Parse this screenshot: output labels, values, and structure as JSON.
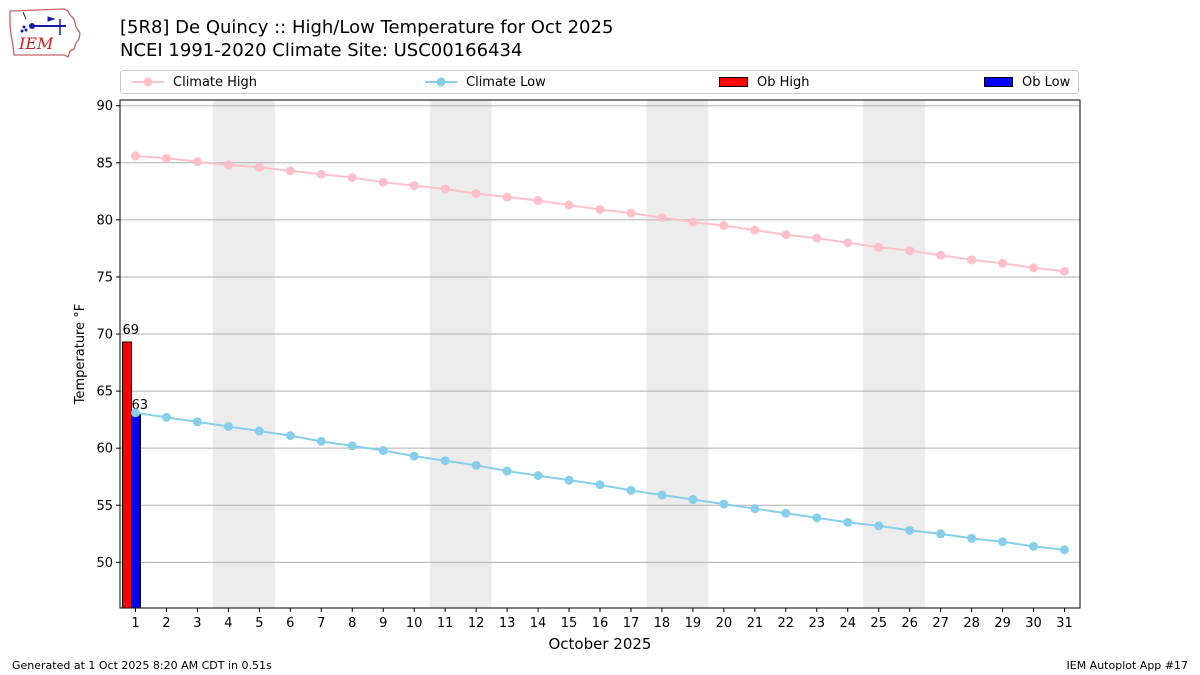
{
  "title_line1": "[5R8] De Quincy :: High/Low Temperature for Oct 2025",
  "title_line2": "NCEI 1991-2020 Climate Site: USC00166434",
  "logo_text": "IEM",
  "footer_left": "Generated at 1 Oct 2025 8:20 AM CDT in 0.51s",
  "footer_right": "IEM Autoplot App #17",
  "colors": {
    "climate_high": "#ffc0cb",
    "climate_low": "#87ceeb",
    "ob_high": "#ff0000",
    "ob_low": "#0000ff",
    "weekend_shade": "#ececec",
    "grid": "#b0b0b0"
  },
  "legend": [
    {
      "label": "Climate High",
      "kind": "line",
      "series": "climate_high"
    },
    {
      "label": "Climate Low",
      "kind": "line",
      "series": "climate_low"
    },
    {
      "label": "Ob High",
      "kind": "bar",
      "series": "ob_high"
    },
    {
      "label": "Ob Low",
      "kind": "bar",
      "series": "ob_low"
    }
  ],
  "chart_data": {
    "type": "line",
    "xlabel": "October 2025",
    "ylabel": "Temperature °F",
    "xlim": [
      0.5,
      31.5
    ],
    "ylim": [
      46,
      90.5
    ],
    "yticks": [
      50,
      55,
      60,
      65,
      70,
      75,
      80,
      85,
      90
    ],
    "x": [
      1,
      2,
      3,
      4,
      5,
      6,
      7,
      8,
      9,
      10,
      11,
      12,
      13,
      14,
      15,
      16,
      17,
      18,
      19,
      20,
      21,
      22,
      23,
      24,
      25,
      26,
      27,
      28,
      29,
      30,
      31
    ],
    "grid": "y",
    "legend_position": "top",
    "weekend_spans": [
      [
        3.5,
        5.5
      ],
      [
        10.5,
        12.5
      ],
      [
        17.5,
        19.5
      ],
      [
        24.5,
        26.5
      ]
    ],
    "series": [
      {
        "name": "Climate High",
        "type": "line",
        "values": [
          85.6,
          85.4,
          85.1,
          84.8,
          84.6,
          84.3,
          84.0,
          83.7,
          83.3,
          83.0,
          82.7,
          82.3,
          82.0,
          81.7,
          81.3,
          80.9,
          80.6,
          80.2,
          79.8,
          79.5,
          79.1,
          78.7,
          78.4,
          78.0,
          77.6,
          77.3,
          76.9,
          76.5,
          76.2,
          75.8,
          75.5
        ]
      },
      {
        "name": "Climate Low",
        "type": "line",
        "values": [
          63.1,
          62.7,
          62.3,
          61.9,
          61.5,
          61.1,
          60.6,
          60.2,
          59.8,
          59.3,
          58.9,
          58.5,
          58.0,
          57.6,
          57.2,
          56.8,
          56.3,
          55.9,
          55.5,
          55.1,
          54.7,
          54.3,
          53.9,
          53.5,
          53.2,
          52.8,
          52.5,
          52.1,
          51.8,
          51.4,
          51.1
        ]
      },
      {
        "name": "Ob High",
        "type": "bar",
        "x": [
          1
        ],
        "values": [
          69.3
        ],
        "labels": [
          "69"
        ]
      },
      {
        "name": "Ob Low",
        "type": "bar",
        "x": [
          1
        ],
        "values": [
          63
        ],
        "labels": [
          "63"
        ]
      }
    ]
  }
}
